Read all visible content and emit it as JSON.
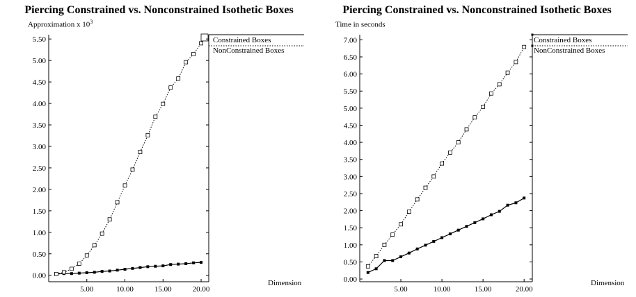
{
  "chart_data": [
    {
      "type": "line",
      "title": "Piercing Constrained vs. Nonconstrained Isothetic Boxes",
      "ylabel_text": "Approximation x 10",
      "ylabel_exp": "3",
      "xlabel": "Dimension",
      "xlim": [
        0,
        21
      ],
      "ylim": [
        -0.15,
        5.6
      ],
      "xticks": [
        5,
        10,
        15,
        20
      ],
      "xtick_labels": [
        "5.00",
        "10.00",
        "15.00",
        "20.00"
      ],
      "yticks": [
        0,
        0.5,
        1,
        1.5,
        2,
        2.5,
        3,
        3.5,
        4,
        4.5,
        5,
        5.5
      ],
      "ytick_labels": [
        "0.00",
        "0.50",
        "1.00",
        "1.50",
        "2.00",
        "2.50",
        "3.00",
        "3.50",
        "4.00",
        "4.50",
        "5.00",
        "5.50"
      ],
      "grid": false,
      "legend_position": "right",
      "series": [
        {
          "name": "Constrained Boxes",
          "style": "solid",
          "marker": "filled-square",
          "x": [
            1,
            2,
            3,
            4,
            5,
            6,
            7,
            8,
            9,
            10,
            11,
            12,
            13,
            14,
            15,
            16,
            17,
            18,
            19,
            20
          ],
          "y": [
            0.03,
            0.04,
            0.04,
            0.05,
            0.06,
            0.07,
            0.09,
            0.1,
            0.12,
            0.14,
            0.16,
            0.18,
            0.2,
            0.21,
            0.22,
            0.25,
            0.26,
            0.27,
            0.29,
            0.3
          ]
        },
        {
          "name": "NonConstrained Boxes",
          "style": "dotted",
          "marker": "hollow-square",
          "x": [
            1,
            2,
            3,
            4,
            5,
            6,
            7,
            8,
            9,
            10,
            11,
            12,
            13,
            14,
            15,
            16,
            17,
            18,
            19,
            20
          ],
          "y": [
            0.03,
            0.07,
            0.15,
            0.27,
            0.46,
            0.7,
            0.97,
            1.3,
            1.7,
            2.09,
            2.46,
            2.87,
            3.26,
            3.69,
            3.99,
            4.37,
            4.58,
            4.96,
            5.15,
            5.4
          ]
        }
      ]
    },
    {
      "type": "line",
      "title": "Piercing Constrained vs. Nonconstrained Isothetic Boxes",
      "ylabel_text": "Time in seconds",
      "ylabel_exp": "",
      "xlabel": "Dimension",
      "xlim": [
        0,
        21
      ],
      "ylim": [
        -0.08,
        7.15
      ],
      "xticks": [
        5,
        10,
        15,
        20
      ],
      "xtick_labels": [
        "5.00",
        "10.00",
        "15.00",
        "20.00"
      ],
      "yticks": [
        0,
        0.5,
        1,
        1.5,
        2,
        2.5,
        3,
        3.5,
        4,
        4.5,
        5,
        5.5,
        6,
        6.5,
        7
      ],
      "ytick_labels": [
        "0.00",
        "0.50",
        "1.00",
        "1.50",
        "2.00",
        "2.50",
        "3.00",
        "3.50",
        "4.00",
        "4.50",
        "5.00",
        "5.50",
        "6.00",
        "6.50",
        "7.00"
      ],
      "grid": false,
      "legend_position": "right",
      "series": [
        {
          "name": "Constrained Boxes",
          "style": "solid",
          "marker": "filled-square",
          "x": [
            1,
            2,
            3,
            4,
            5,
            6,
            7,
            8,
            9,
            10,
            11,
            12,
            13,
            14,
            15,
            16,
            17,
            18,
            19,
            20
          ],
          "y": [
            0.19,
            0.3,
            0.54,
            0.54,
            0.65,
            0.76,
            0.88,
            0.99,
            1.1,
            1.21,
            1.32,
            1.43,
            1.54,
            1.65,
            1.76,
            1.88,
            1.98,
            2.16,
            2.23,
            2.37
          ]
        },
        {
          "name": "NonConstrained Boxes",
          "style": "dotted",
          "marker": "hollow-square",
          "x": [
            1,
            2,
            3,
            4,
            5,
            6,
            7,
            8,
            9,
            10,
            11,
            12,
            13,
            14,
            15,
            16,
            17,
            18,
            19,
            20
          ],
          "y": [
            0.37,
            0.67,
            1.0,
            1.3,
            1.6,
            1.97,
            2.33,
            2.67,
            3.0,
            3.38,
            3.7,
            4.0,
            4.38,
            4.73,
            5.04,
            5.43,
            5.7,
            6.04,
            6.35,
            6.79
          ]
        }
      ]
    }
  ]
}
